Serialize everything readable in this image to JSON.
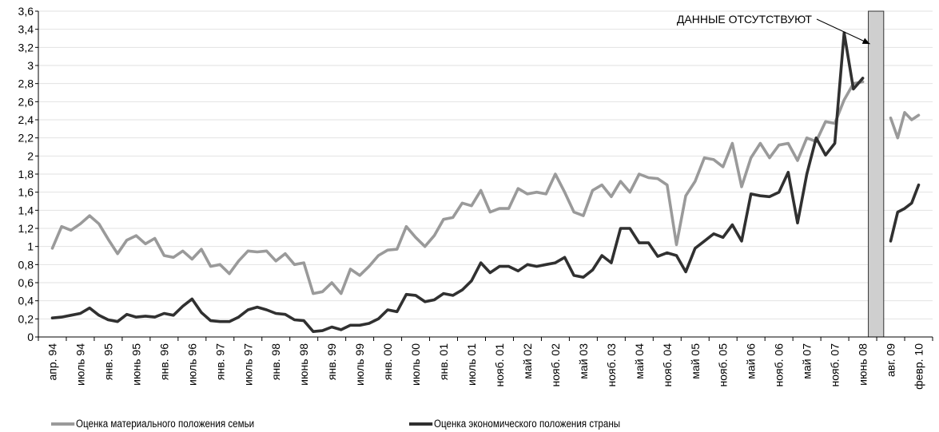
{
  "chart_data": {
    "type": "line",
    "ylim": [
      0,
      3.6
    ],
    "y_ticks": [
      "0",
      "0,2",
      "0,4",
      "0,6",
      "0,8",
      "1",
      "1,2",
      "1,4",
      "1,6",
      "1,8",
      "2",
      "2,2",
      "2,4",
      "2,6",
      "2,8",
      "3",
      "3,2",
      "3,4",
      "3,6"
    ],
    "x_labels": [
      "апр. 94",
      "июль 94",
      "янв. 95",
      "июнь 95",
      "янв. 96",
      "июль 96",
      "янв. 97",
      "июль 97",
      "янв. 98",
      "июнь 98",
      "янв. 99",
      "июль 99",
      "янв. 00",
      "июль 00",
      "янв. 01",
      "июль 01",
      "нояб. 01",
      "май 02",
      "нояб. 02",
      "май 03",
      "нояб. 03",
      "май 04",
      "нояб. 04",
      "май 05",
      "нояб. 05",
      "май 06",
      "нояб. 06",
      "май 07",
      "нояб. 07",
      "июнь 08",
      "авг. 09",
      "февр. 10"
    ],
    "grid": true,
    "annotation": "ДАННЫЕ  ОТСУТСТВУЮТ",
    "gap_after_label": "июнь 08",
    "series": [
      {
        "name": "Оценка материального положения семьи",
        "color": "#9a9a9a",
        "values": [
          0.98,
          1.22,
          1.18,
          1.25,
          1.34,
          1.25,
          1.08,
          0.92,
          1.07,
          1.12,
          1.03,
          1.09,
          0.9,
          0.88,
          0.95,
          0.86,
          0.97,
          0.78,
          0.8,
          0.7,
          0.84,
          0.95,
          0.94,
          0.95,
          0.84,
          0.92,
          0.8,
          0.82,
          0.48,
          0.5,
          0.6,
          0.48,
          0.75,
          0.68,
          0.78,
          0.9,
          0.96,
          0.97,
          1.22,
          1.1,
          1.0,
          1.12,
          1.3,
          1.32,
          1.48,
          1.45,
          1.62,
          1.38,
          1.42,
          1.42,
          1.64,
          1.58,
          1.6,
          1.58,
          1.8,
          1.6,
          1.38,
          1.34,
          1.62,
          1.68,
          1.55,
          1.72,
          1.6,
          1.8,
          1.76,
          1.75,
          1.68,
          1.02,
          1.56,
          1.72,
          1.98,
          1.96,
          1.88,
          2.14,
          1.66,
          1.98,
          2.14,
          1.98,
          2.12,
          2.14,
          1.95,
          2.2,
          2.16,
          2.38,
          2.36,
          2.62,
          2.8,
          2.82,
          null,
          2.42,
          2.2,
          2.48,
          2.4,
          2.45
        ]
      },
      {
        "name": "Оценка экономического положения страны",
        "color": "#303030",
        "values": [
          0.21,
          0.22,
          0.24,
          0.26,
          0.32,
          0.24,
          0.19,
          0.17,
          0.25,
          0.22,
          0.23,
          0.22,
          0.26,
          0.24,
          0.34,
          0.42,
          0.27,
          0.18,
          0.17,
          0.17,
          0.22,
          0.3,
          0.33,
          0.3,
          0.26,
          0.25,
          0.19,
          0.18,
          0.06,
          0.07,
          0.11,
          0.08,
          0.13,
          0.13,
          0.15,
          0.2,
          0.3,
          0.28,
          0.47,
          0.46,
          0.39,
          0.41,
          0.48,
          0.46,
          0.52,
          0.62,
          0.82,
          0.71,
          0.78,
          0.78,
          0.73,
          0.8,
          0.78,
          0.8,
          0.82,
          0.88,
          0.68,
          0.66,
          0.74,
          0.9,
          0.82,
          1.2,
          1.2,
          1.04,
          1.04,
          0.89,
          0.93,
          0.9,
          0.72,
          0.98,
          1.06,
          1.14,
          1.1,
          1.24,
          1.06,
          1.58,
          1.56,
          1.55,
          1.6,
          1.82,
          1.26,
          1.8,
          2.2,
          2.01,
          2.14,
          3.36,
          2.74,
          2.86,
          null,
          1.06,
          1.38,
          1.42,
          1.48,
          1.68
        ]
      }
    ]
  },
  "legend": [
    {
      "label": "Оценка материального положения семьи",
      "color": "#9a9a9a"
    },
    {
      "label": "Оценка экономического положения страны",
      "color": "#303030"
    }
  ]
}
